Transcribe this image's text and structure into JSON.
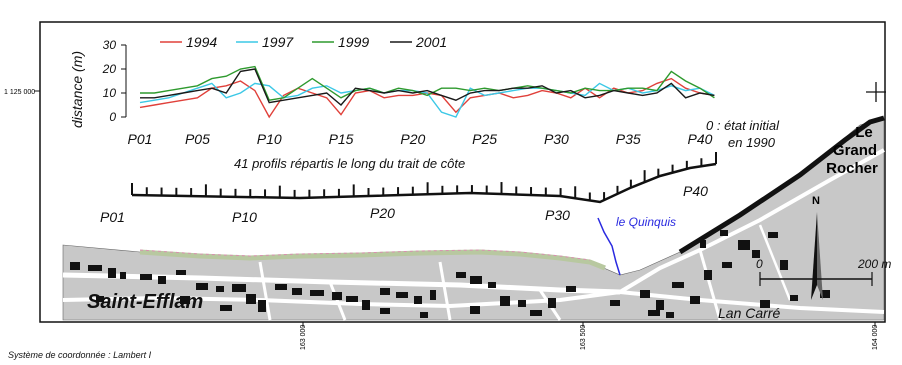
{
  "chart_data": {
    "type": "line",
    "ylabel": "distance (m)",
    "ylim": [
      0,
      30
    ],
    "yticks": [
      "0",
      "10",
      "20",
      "30"
    ],
    "x_tick_labels": [
      "P01",
      "P05",
      "P10",
      "P15",
      "P20",
      "P25",
      "P30",
      "P35",
      "P40"
    ],
    "x_tick_values": [
      1,
      5,
      10,
      15,
      20,
      25,
      30,
      35,
      40
    ],
    "xlabel": "41 profils répartis le long du trait de côte",
    "zero_note_line1": "0 : état initial",
    "zero_note_line2": "en 1990",
    "series": [
      {
        "name": "1994",
        "color": "#e0403a",
        "values": [
          4,
          5,
          6,
          7,
          8,
          12,
          13,
          15,
          11,
          0,
          9,
          12,
          10,
          8,
          1,
          10,
          11,
          8,
          9,
          9,
          10,
          9,
          2,
          8,
          9,
          10,
          8,
          9,
          11,
          10,
          8,
          12,
          8,
          12,
          10,
          11,
          14,
          16,
          12,
          10,
          9
        ]
      },
      {
        "name": "1997",
        "color": "#3cc8e6",
        "values": [
          6,
          7,
          8,
          10,
          12,
          14,
          8,
          10,
          14,
          13,
          8,
          9,
          12,
          13,
          10,
          11,
          12,
          10,
          11,
          11,
          10,
          2,
          0,
          12,
          9,
          10,
          11,
          12,
          12,
          11,
          10,
          9,
          14,
          11,
          12,
          10,
          11,
          13,
          11,
          12,
          9
        ]
      },
      {
        "name": "1999",
        "color": "#2e9a2e",
        "values": [
          10,
          10,
          11,
          12,
          13,
          16,
          17,
          20,
          21,
          7,
          8,
          12,
          16,
          12,
          8,
          11,
          12,
          10,
          12,
          11,
          9,
          12,
          12,
          11,
          12,
          11,
          12,
          13,
          12,
          11,
          10,
          12,
          11,
          11,
          12,
          12,
          11,
          19,
          15,
          12,
          8
        ]
      },
      {
        "name": "2001",
        "color": "#1a1a1a",
        "values": [
          8,
          8,
          9,
          10,
          11,
          12,
          10,
          19,
          20,
          6,
          7,
          8,
          9,
          10,
          5,
          12,
          11,
          10,
          11,
          10,
          11,
          9,
          7,
          10,
          11,
          11,
          12,
          12,
          13,
          10,
          11,
          8,
          9,
          11,
          10,
          9,
          10,
          14,
          8,
          10,
          9
        ]
      }
    ]
  },
  "map": {
    "profile_labels": [
      "P01",
      "P10",
      "P20",
      "P30",
      "P40"
    ],
    "stream_label": "le Quinquis",
    "place_main": "Saint-Efflam",
    "place_secondary": "Lan Carré",
    "rocher_line1": "Le",
    "rocher_line2": "Grand",
    "rocher_line3": "Rocher",
    "north_letter": "N",
    "scale_zero": "0",
    "scale_end": "200 m",
    "coord_left": "1 125 000",
    "coord_bottom": [
      "163 000",
      "163 500",
      "164 000"
    ],
    "crs_note": "Système de coordonnée : Lambert I"
  },
  "colors": {
    "land": "#c8c8c8",
    "road": "#ffffff",
    "building": "#111111",
    "coast": "#111111",
    "stream": "#2a2ae0"
  }
}
